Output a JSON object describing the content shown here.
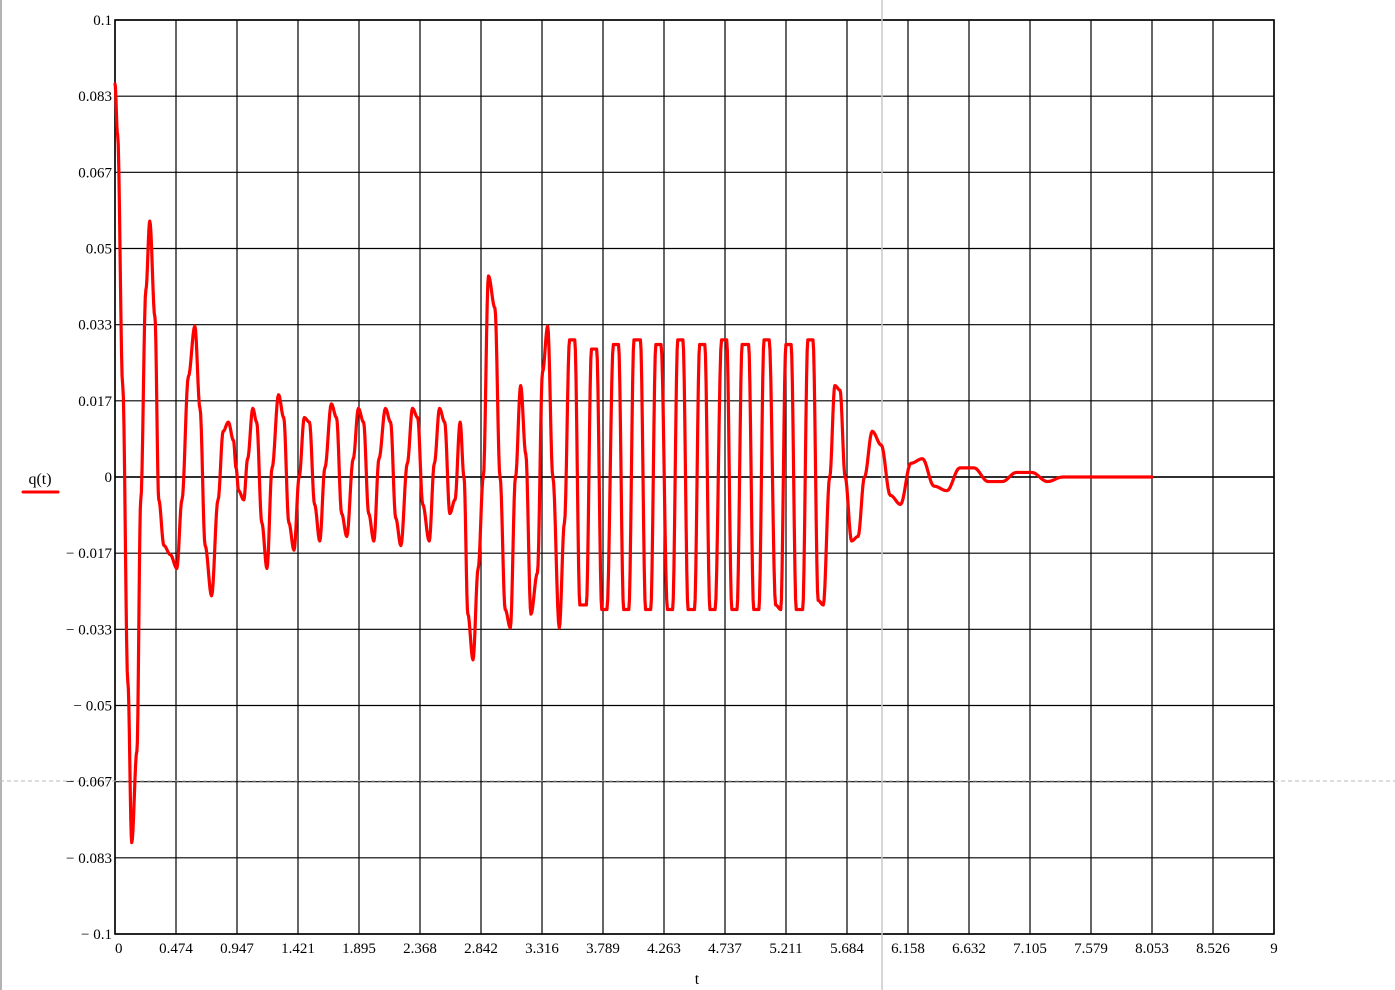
{
  "chart_data": {
    "type": "line",
    "title": "",
    "xlabel": "t",
    "ylabel": "q(t)",
    "xlim": [
      0,
      9
    ],
    "ylim": [
      -0.1,
      0.1
    ],
    "grid": true,
    "x_ticks": [
      "0",
      "0.474",
      "0.947",
      "1.421",
      "1.895",
      "2.368",
      "2.842",
      "3.316",
      "3.789",
      "4.263",
      "4.737",
      "5.211",
      "5.684",
      "6.158",
      "6.632",
      "7.105",
      "7.579",
      "8.053",
      "8.526",
      "9"
    ],
    "y_ticks": [
      "0.1",
      "0.083",
      "0.067",
      "0.05",
      "0.033",
      "0.017",
      "0",
      "− 0.017",
      "− 0.033",
      "− 0.05",
      "− 0.067",
      "− 0.083",
      "− 0.1"
    ],
    "legend": {
      "position": "left",
      "entries": [
        "q(t)"
      ]
    },
    "series": [
      {
        "name": "q(t)",
        "color": "#ff0000",
        "x": [
          0,
          0.02,
          0.06,
          0.1,
          0.13,
          0.17,
          0.2,
          0.24,
          0.27,
          0.31,
          0.34,
          0.38,
          0.43,
          0.48,
          0.52,
          0.57,
          0.62,
          0.66,
          0.7,
          0.75,
          0.8,
          0.84,
          0.88,
          0.92,
          0.94,
          0.96,
          1.0,
          1.03,
          1.07,
          1.1,
          1.14,
          1.18,
          1.22,
          1.27,
          1.31,
          1.35,
          1.39,
          1.43,
          1.47,
          1.51,
          1.55,
          1.59,
          1.63,
          1.68,
          1.72,
          1.76,
          1.8,
          1.85,
          1.89,
          1.93,
          1.97,
          2.01,
          2.05,
          2.1,
          2.14,
          2.18,
          2.22,
          2.27,
          2.31,
          2.35,
          2.39,
          2.44,
          2.48,
          2.52,
          2.56,
          2.6,
          2.64,
          2.68,
          2.71,
          2.74,
          2.78,
          2.82,
          2.86,
          2.9,
          2.95,
          2.99,
          3.03,
          3.07,
          3.11,
          3.15,
          3.19,
          3.23,
          3.28,
          3.32,
          3.36,
          3.4,
          3.45,
          3.49,
          3.53,
          3.57,
          3.61,
          3.66,
          3.7,
          3.74,
          3.78,
          3.82,
          3.87,
          3.91,
          3.95,
          3.99,
          4.03,
          4.08,
          4.12,
          4.16,
          4.2,
          4.24,
          4.29,
          4.33,
          4.37,
          4.41,
          4.45,
          4.5,
          4.54,
          4.58,
          4.62,
          4.66,
          4.71,
          4.75,
          4.79,
          4.83,
          4.87,
          4.92,
          4.96,
          5.0,
          5.04,
          5.08,
          5.13,
          5.17,
          5.21,
          5.25,
          5.29,
          5.34,
          5.38,
          5.42,
          5.46,
          5.5,
          5.55,
          5.59,
          5.63,
          5.67,
          5.72,
          5.77,
          5.82,
          5.88,
          5.95,
          6.02,
          6.1,
          6.18,
          6.27,
          6.36,
          6.46,
          6.56,
          6.67,
          6.78,
          6.89,
          7.0,
          7.12,
          7.24,
          7.36,
          7.48,
          7.6,
          7.8,
          8.053
        ],
        "y": [
          0.086,
          0.075,
          0.02,
          -0.045,
          -0.08,
          -0.06,
          -0.005,
          0.041,
          0.056,
          0.035,
          -0.005,
          -0.015,
          -0.017,
          -0.02,
          -0.005,
          0.022,
          0.033,
          0.015,
          -0.015,
          -0.026,
          -0.005,
          0.01,
          0.012,
          0.008,
          0.002,
          -0.003,
          -0.005,
          0.004,
          0.015,
          0.012,
          -0.01,
          -0.02,
          0.002,
          0.018,
          0.013,
          -0.01,
          -0.016,
          0.0,
          0.013,
          0.012,
          -0.006,
          -0.014,
          0.002,
          0.016,
          0.013,
          -0.008,
          -0.013,
          0.004,
          0.015,
          0.012,
          -0.008,
          -0.014,
          0.004,
          0.015,
          0.012,
          -0.009,
          -0.015,
          0.003,
          0.015,
          0.013,
          -0.006,
          -0.014,
          0.003,
          0.015,
          0.012,
          -0.008,
          -0.005,
          0.012,
          0.0,
          -0.03,
          -0.04,
          -0.02,
          0.0,
          0.044,
          0.037,
          0.0,
          -0.029,
          -0.033,
          0.0,
          0.02,
          0.005,
          -0.03,
          -0.021,
          0.023,
          0.033,
          0.0,
          -0.033,
          -0.01,
          0.03,
          0.03,
          -0.028,
          -0.028,
          0.028,
          0.028,
          -0.029,
          -0.029,
          0.029,
          0.029,
          -0.029,
          -0.029,
          0.03,
          0.03,
          -0.029,
          -0.029,
          0.029,
          0.029,
          -0.029,
          -0.029,
          0.03,
          0.03,
          -0.029,
          -0.029,
          0.029,
          0.029,
          -0.029,
          -0.029,
          0.03,
          0.03,
          -0.029,
          -0.029,
          0.029,
          0.029,
          -0.029,
          -0.029,
          0.03,
          0.03,
          -0.028,
          -0.029,
          0.029,
          0.029,
          -0.029,
          -0.029,
          0.03,
          0.03,
          -0.027,
          -0.028,
          0.0,
          0.02,
          0.019,
          0.0,
          -0.014,
          -0.013,
          0.0,
          0.01,
          0.007,
          -0.004,
          -0.006,
          0.003,
          0.004,
          -0.002,
          -0.003,
          0.002,
          0.002,
          -0.001,
          -0.001,
          0.001,
          0.001,
          -0.001,
          0.0,
          0.0,
          0.0,
          0.0,
          0.0
        ]
      }
    ]
  }
}
